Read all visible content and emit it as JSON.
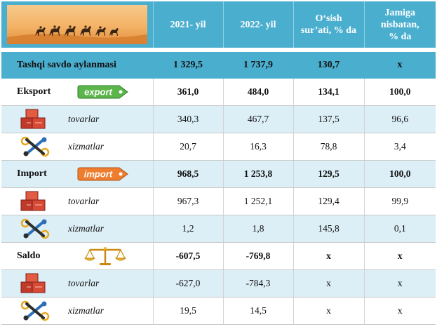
{
  "headers": {
    "y2021": "2021- yil",
    "y2022": "2022- yil",
    "growth": [
      "O‘sish",
      "sur’ati, % da"
    ],
    "share": [
      "Jamiga",
      "nisbatan,",
      "% da"
    ]
  },
  "icons": {
    "header_image": "desert-caravan-banner-icon",
    "export": "export-tag-icon",
    "import": "import-tag-icon",
    "goods": "boxes-icon",
    "services": "tools-gears-icon",
    "saldo": "balance-scale-icon"
  },
  "badges": {
    "export": "export",
    "import": "import"
  },
  "colors": {
    "header_bg": "#4aaecf",
    "alt_row": "#dceef6",
    "export_tag": "#5bb54a",
    "import_tag": "#ee7d2e"
  },
  "rows": [
    {
      "label": "Tashqi savdo aylanmasi",
      "y2021": "1 329,5",
      "y2022": "1 737,9",
      "growth": "130,7",
      "share": "x"
    },
    {
      "label": "Eksport",
      "y2021": "361,0",
      "y2022": "484,0",
      "growth": "134,1",
      "share": "100,0"
    },
    {
      "label": "tovarlar",
      "y2021": "340,3",
      "y2022": "467,7",
      "growth": "137,5",
      "share": "96,6"
    },
    {
      "label": "xizmatlar",
      "y2021": "20,7",
      "y2022": "16,3",
      "growth": "78,8",
      "share": "3,4"
    },
    {
      "label": "Import",
      "y2021": "968,5",
      "y2022": "1 253,8",
      "growth": "129,5",
      "share": "100,0"
    },
    {
      "label": "tovarlar",
      "y2021": "967,3",
      "y2022": "1 252,1",
      "growth": "129,4",
      "share": "99,9"
    },
    {
      "label": "xizmatlar",
      "y2021": "1,2",
      "y2022": "1,8",
      "growth": "145,8",
      "share": "0,1"
    },
    {
      "label": "Saldo",
      "y2021": "-607,5",
      "y2022": "-769,8",
      "growth": "x",
      "share": "x"
    },
    {
      "label": "tovarlar",
      "y2021": "-627,0",
      "y2022": "-784,3",
      "growth": "x",
      "share": "x"
    },
    {
      "label": "xizmatlar",
      "y2021": "19,5",
      "y2022": "14,5",
      "growth": "x",
      "share": "x"
    }
  ]
}
